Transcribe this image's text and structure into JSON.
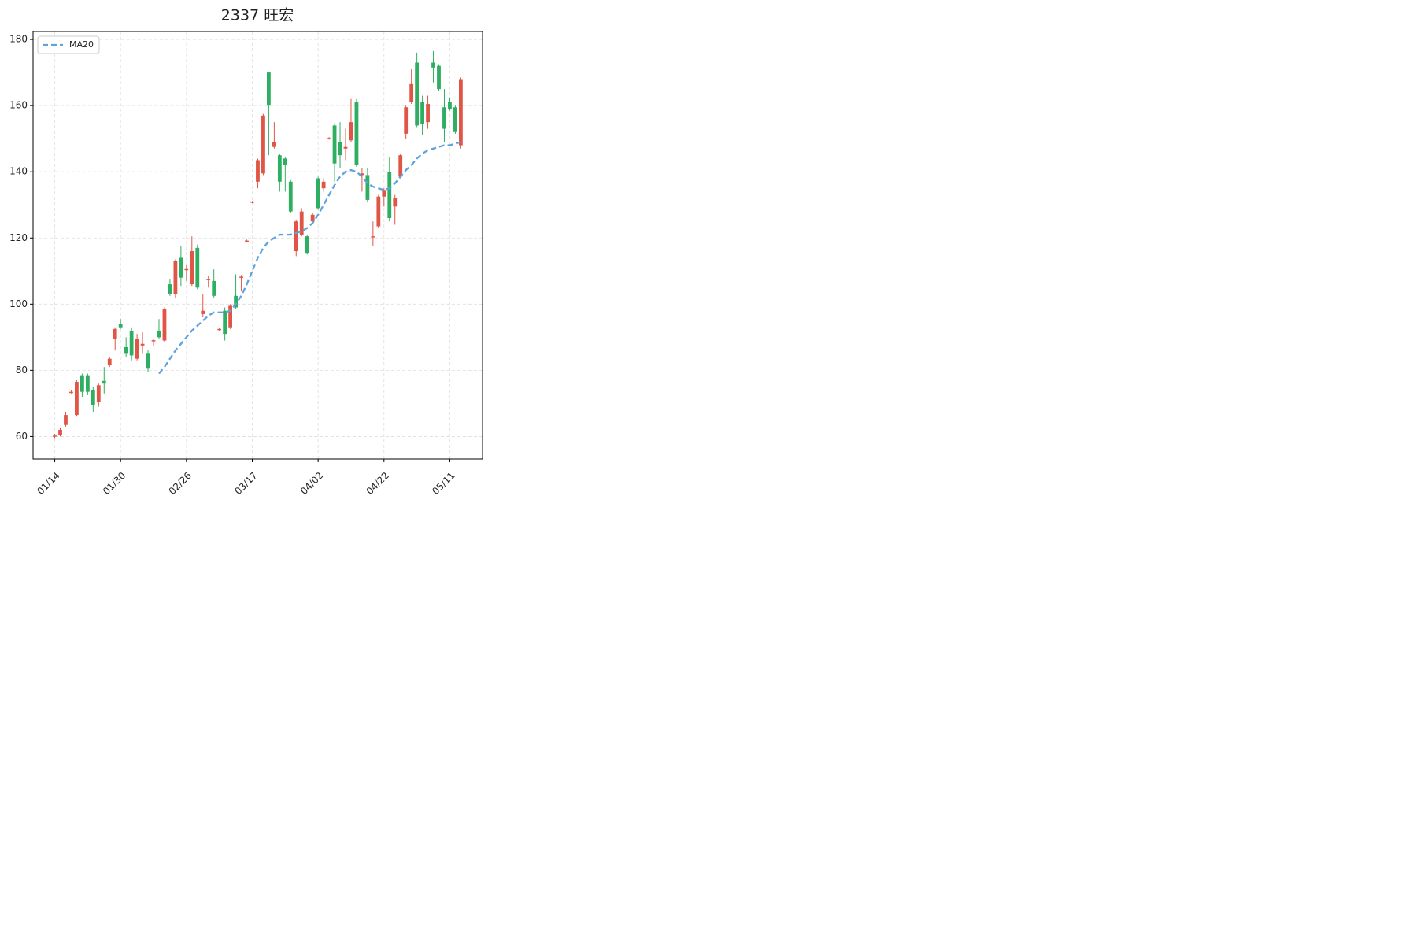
{
  "chart_data": {
    "type": "candlestick",
    "title": "2337 旺宏",
    "categories": [
      "01/14",
      null,
      null,
      null,
      null,
      null,
      null,
      null,
      null,
      null,
      null,
      null,
      "01/30",
      null,
      null,
      null,
      null,
      null,
      null,
      null,
      null,
      null,
      null,
      null,
      "02/26",
      null,
      null,
      null,
      null,
      null,
      null,
      null,
      null,
      null,
      null,
      null,
      "03/17",
      null,
      null,
      null,
      null,
      null,
      null,
      null,
      null,
      null,
      null,
      null,
      "04/02",
      null,
      null,
      null,
      null,
      null,
      null,
      null,
      null,
      null,
      null,
      null,
      "04/22",
      null,
      null,
      null,
      null,
      null,
      null,
      null,
      null,
      null,
      null,
      null,
      "05/11",
      null,
      null
    ],
    "open": [
      60,
      60.5,
      63.5,
      73.2,
      66.5,
      78.5,
      78.5,
      74,
      70.5,
      76.8,
      81.5,
      89.5,
      94,
      87,
      92,
      83.5,
      87.5,
      85,
      88.8,
      92,
      89,
      106,
      103,
      114,
      110.3,
      106,
      117,
      97,
      107.3,
      107,
      92.2,
      98,
      93,
      102.5,
      108,
      118.9,
      130.7,
      137,
      139.5,
      170,
      147.5,
      145,
      144,
      137,
      116,
      121,
      120.5,
      125,
      138,
      135,
      149.9,
      154,
      149,
      147,
      149.5,
      161,
      139,
      139,
      120.2,
      123.5,
      132.5,
      140,
      129.5,
      138.5,
      151.5,
      161,
      173,
      161,
      155,
      173,
      172,
      159.5,
      161,
      159.5,
      148
    ],
    "high": [
      60.8,
      62.5,
      67.5,
      74,
      77,
      79,
      79,
      75,
      76,
      81,
      84,
      93,
      95.5,
      90,
      93,
      91,
      91.5,
      86,
      89.5,
      95.5,
      99,
      107.5,
      113.5,
      117.5,
      112,
      120.5,
      118,
      103,
      108.5,
      110.5,
      92.8,
      99,
      100,
      109,
      108.8,
      119.5,
      131.2,
      144,
      157.5,
      170.2,
      155,
      145.5,
      144.5,
      137.5,
      125.5,
      129,
      121,
      127.5,
      138.5,
      138,
      150.5,
      154.5,
      155,
      153,
      162,
      162,
      141,
      141,
      125,
      133,
      135,
      144.5,
      133,
      145.5,
      160,
      171,
      176,
      163,
      163,
      176.5,
      172.5,
      165,
      162.5,
      160,
      168.5
    ],
    "low": [
      59.5,
      60,
      63,
      73,
      66,
      72,
      72.5,
      67.5,
      69,
      73,
      81,
      86,
      92.5,
      84,
      83,
      83,
      85,
      79.5,
      87.5,
      89.5,
      88.5,
      102.5,
      102,
      105.5,
      107,
      105.5,
      104.5,
      96,
      105,
      102,
      92,
      89,
      92.5,
      98.5,
      104,
      118.8,
      130.5,
      135,
      139,
      145,
      147,
      134,
      134,
      127.5,
      114.5,
      120.5,
      115,
      124.5,
      128.5,
      134,
      149.7,
      137,
      141,
      143.5,
      149,
      141.5,
      134,
      131,
      117.5,
      123,
      129.5,
      125,
      124,
      138,
      150,
      160.5,
      153.5,
      151,
      153,
      167,
      164.5,
      149,
      158.5,
      151.5,
      147
    ],
    "close": [
      60.3,
      62,
      66.5,
      73.5,
      76.5,
      73.5,
      73.5,
      69.5,
      75.5,
      76,
      83.5,
      92.5,
      93,
      85,
      84.5,
      89.5,
      88,
      80.5,
      89.1,
      90,
      98.5,
      103,
      113,
      108,
      110.6,
      116,
      105,
      98,
      107.6,
      102.5,
      92.5,
      91,
      99.5,
      99,
      108.3,
      119.2,
      131,
      143.5,
      157,
      160,
      149,
      137,
      142,
      128,
      125,
      128,
      115.5,
      127,
      129,
      137,
      150.2,
      142.5,
      145,
      147.5,
      155,
      142,
      139.5,
      131.5,
      120.5,
      132.5,
      134.5,
      126,
      132,
      145,
      159.5,
      166.5,
      154,
      154.5,
      160.5,
      171.5,
      165,
      153,
      159,
      152,
      168
    ],
    "up_color": "#e05545",
    "down_color": "#2eae60",
    "series": [
      {
        "name": "MA20",
        "color": "#5fa3de",
        "dashed": true,
        "values": [
          null,
          null,
          null,
          null,
          null,
          null,
          null,
          null,
          null,
          null,
          null,
          null,
          null,
          null,
          null,
          null,
          null,
          null,
          null,
          79,
          81,
          83.5,
          86,
          88,
          90,
          92,
          93.5,
          95,
          96.5,
          97.5,
          97.5,
          97.5,
          98,
          100,
          102.5,
          106,
          110,
          114,
          117,
          119,
          120,
          121,
          121,
          121,
          121.5,
          122,
          123,
          124.5,
          127,
          130,
          133,
          136,
          138.5,
          140,
          140.5,
          140,
          138.5,
          136.5,
          135.5,
          135,
          134.5,
          135,
          136.5,
          138.5,
          140.5,
          142,
          144,
          145.5,
          146.5,
          147,
          147.5,
          148,
          148,
          148.5,
          149
        ]
      }
    ],
    "xlim": [
      -3.95,
      77.96
    ],
    "ylim": [
      53.2,
      182.4
    ],
    "yticks": [
      60,
      80,
      100,
      120,
      140,
      160,
      180
    ],
    "grid": true,
    "legend": "upper left"
  }
}
